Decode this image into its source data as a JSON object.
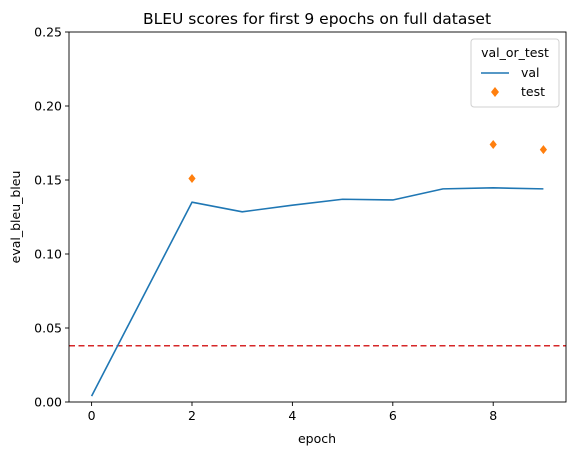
{
  "chart_data": {
    "type": "line",
    "title": "BLEU scores for first 9 epochs on full dataset",
    "xlabel": "epoch",
    "ylabel": "eval_bleu_bleu",
    "xlim": [
      -0.45,
      9.45
    ],
    "ylim": [
      0.0,
      0.25
    ],
    "x_ticks": [
      0,
      2,
      4,
      6,
      8
    ],
    "x_tick_labels": [
      "0",
      "2",
      "4",
      "6",
      "8"
    ],
    "y_ticks": [
      0.0,
      0.05,
      0.1,
      0.15,
      0.2,
      0.25
    ],
    "y_tick_labels": [
      "0.00",
      "0.05",
      "0.10",
      "0.15",
      "0.20",
      "0.25"
    ],
    "grid": false,
    "legend": {
      "title": "val_or_test",
      "placement": "top-right"
    },
    "series": [
      {
        "name": "val",
        "kind": "line",
        "color": "#1f77b4",
        "x": [
          0,
          2,
          3,
          4,
          5,
          6,
          7,
          8,
          9
        ],
        "y": [
          0.004,
          0.135,
          0.1285,
          0.133,
          0.137,
          0.1365,
          0.144,
          0.1447,
          0.144
        ]
      },
      {
        "name": "test",
        "kind": "marker",
        "marker": "diamond",
        "color": "#ff7f0e",
        "x": [
          2,
          8,
          9
        ],
        "y": [
          0.151,
          0.174,
          0.1705
        ]
      }
    ],
    "reference_lines": [
      {
        "orientation": "horizontal",
        "y": 0.038,
        "style": "dashed",
        "color": "#d62728"
      }
    ]
  }
}
